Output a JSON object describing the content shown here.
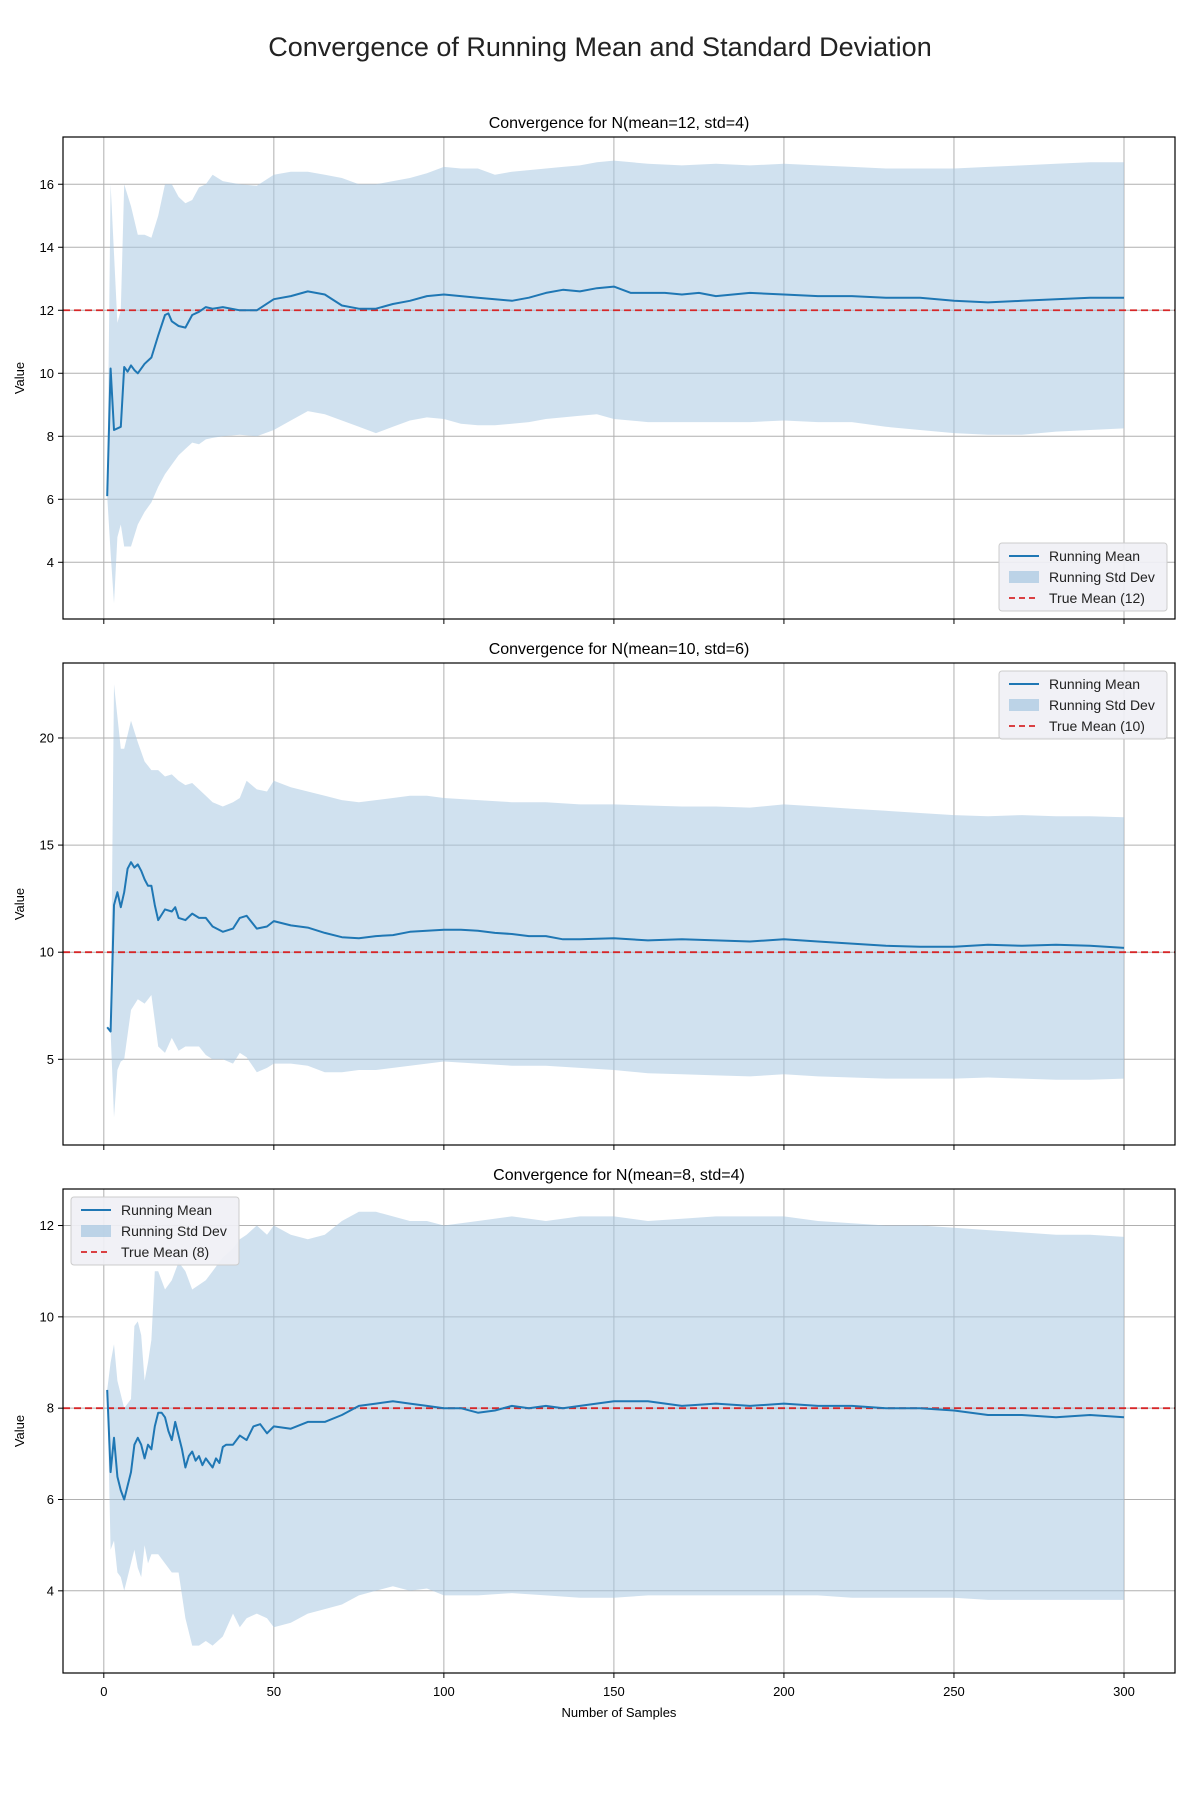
{
  "figure": {
    "suptitle": "Convergence of Running Mean and Standard Deviation"
  },
  "colors": {
    "mean_line": "#1f77b4",
    "std_band": "#a9c8e2",
    "true_mean": "#d62728",
    "grid": "#b0b0b0",
    "axes": "#000000"
  },
  "chart_data": [
    {
      "type": "line",
      "title": "Convergence for N(mean=12, std=4)",
      "xlabel": "",
      "ylabel": "Value",
      "xlim": [
        -12,
        315
      ],
      "ylim": [
        2.2,
        17.5
      ],
      "x_ticks": [
        0,
        50,
        100,
        150,
        200,
        250,
        300
      ],
      "x_tick_labels_visible": false,
      "y_ticks": [
        4,
        6,
        8,
        10,
        12,
        14,
        16
      ],
      "y_tick_labels": [
        "4",
        "6",
        "8",
        "10",
        "12",
        "14",
        "16"
      ],
      "grid": true,
      "legend": {
        "placement": "lower-right",
        "entries": [
          "Running Mean",
          "Running Std Dev",
          "True Mean (12)"
        ]
      },
      "true_mean": 12,
      "series": [
        {
          "name": "Running Mean",
          "x": [
            1,
            2,
            3,
            5,
            6,
            7,
            8,
            9,
            10,
            12,
            14,
            16,
            18,
            19,
            20,
            22,
            24,
            26,
            28,
            30,
            32,
            35,
            40,
            45,
            50,
            55,
            60,
            65,
            70,
            75,
            80,
            85,
            90,
            95,
            100,
            105,
            110,
            115,
            120,
            125,
            130,
            135,
            140,
            145,
            150,
            155,
            160,
            165,
            170,
            175,
            180,
            190,
            200,
            210,
            220,
            230,
            240,
            250,
            260,
            270,
            280,
            290,
            300
          ],
          "y": [
            6.1,
            10.15,
            8.2,
            8.3,
            10.2,
            10.05,
            10.25,
            10.1,
            10.0,
            10.3,
            10.5,
            11.2,
            11.85,
            11.9,
            11.65,
            11.5,
            11.45,
            11.85,
            11.95,
            12.1,
            12.05,
            12.1,
            12.0,
            12.0,
            12.35,
            12.45,
            12.6,
            12.5,
            12.15,
            12.05,
            12.05,
            12.2,
            12.3,
            12.45,
            12.5,
            12.45,
            12.4,
            12.35,
            12.3,
            12.4,
            12.55,
            12.65,
            12.6,
            12.7,
            12.75,
            12.55,
            12.55,
            12.55,
            12.5,
            12.55,
            12.45,
            12.55,
            12.5,
            12.45,
            12.45,
            12.4,
            12.4,
            12.3,
            12.25,
            12.3,
            12.35,
            12.4,
            12.4
          ]
        },
        {
          "name": "Running Std Dev",
          "x": [
            1,
            2,
            3,
            4,
            5,
            6,
            8,
            10,
            12,
            14,
            16,
            18,
            20,
            22,
            24,
            26,
            28,
            30,
            32,
            35,
            40,
            45,
            50,
            55,
            60,
            65,
            70,
            75,
            80,
            85,
            90,
            95,
            100,
            105,
            110,
            115,
            120,
            125,
            130,
            135,
            140,
            145,
            150,
            160,
            170,
            180,
            190,
            200,
            210,
            220,
            230,
            240,
            250,
            260,
            270,
            280,
            290,
            300
          ],
          "upper": [
            6.1,
            16.0,
            13.8,
            11.6,
            12.0,
            16.0,
            15.3,
            14.4,
            14.4,
            14.3,
            15.0,
            16.0,
            16.0,
            15.6,
            15.4,
            15.5,
            15.9,
            16.0,
            16.3,
            16.1,
            16.0,
            15.95,
            16.3,
            16.4,
            16.4,
            16.3,
            16.2,
            16.0,
            16.0,
            16.1,
            16.2,
            16.35,
            16.55,
            16.5,
            16.5,
            16.3,
            16.4,
            16.45,
            16.5,
            16.55,
            16.6,
            16.7,
            16.75,
            16.65,
            16.6,
            16.65,
            16.6,
            16.65,
            16.6,
            16.55,
            16.5,
            16.5,
            16.5,
            16.55,
            16.6,
            16.65,
            16.7,
            16.7
          ],
          "lower": [
            6.1,
            4.3,
            2.7,
            4.8,
            5.2,
            4.5,
            4.5,
            5.2,
            5.6,
            5.9,
            6.4,
            6.8,
            7.1,
            7.4,
            7.6,
            7.8,
            7.75,
            7.9,
            7.95,
            8.0,
            8.05,
            8.0,
            8.2,
            8.5,
            8.8,
            8.7,
            8.5,
            8.3,
            8.1,
            8.3,
            8.5,
            8.6,
            8.55,
            8.4,
            8.35,
            8.35,
            8.4,
            8.45,
            8.55,
            8.6,
            8.65,
            8.7,
            8.55,
            8.45,
            8.45,
            8.45,
            8.45,
            8.5,
            8.45,
            8.45,
            8.3,
            8.2,
            8.1,
            8.05,
            8.05,
            8.15,
            8.2,
            8.25
          ]
        }
      ]
    },
    {
      "type": "line",
      "title": "Convergence for N(mean=10, std=6)",
      "xlabel": "",
      "ylabel": "Value",
      "xlim": [
        -12,
        315
      ],
      "ylim": [
        1.0,
        23.5
      ],
      "x_ticks": [
        0,
        50,
        100,
        150,
        200,
        250,
        300
      ],
      "x_tick_labels_visible": false,
      "y_ticks": [
        5,
        10,
        15,
        20
      ],
      "y_tick_labels": [
        "5",
        "10",
        "15",
        "20"
      ],
      "grid": true,
      "legend": {
        "placement": "upper-right",
        "entries": [
          "Running Mean",
          "Running Std Dev",
          "True Mean (10)"
        ]
      },
      "true_mean": 10,
      "series": [
        {
          "name": "Running Mean",
          "x": [
            1,
            2,
            3,
            4,
            5,
            6,
            7,
            8,
            9,
            10,
            11,
            12,
            13,
            14,
            15,
            16,
            18,
            20,
            21,
            22,
            24,
            26,
            28,
            30,
            32,
            35,
            38,
            40,
            42,
            45,
            48,
            50,
            55,
            60,
            65,
            70,
            75,
            80,
            85,
            90,
            95,
            100,
            105,
            110,
            115,
            120,
            125,
            130,
            135,
            140,
            150,
            160,
            170,
            180,
            190,
            200,
            210,
            220,
            230,
            240,
            250,
            260,
            270,
            280,
            290,
            300
          ],
          "y": [
            6.5,
            6.3,
            12.2,
            12.8,
            12.1,
            12.8,
            13.9,
            14.2,
            13.95,
            14.1,
            13.8,
            13.4,
            13.1,
            13.1,
            12.2,
            11.5,
            12.0,
            11.9,
            12.1,
            11.6,
            11.5,
            11.8,
            11.6,
            11.6,
            11.2,
            10.95,
            11.1,
            11.6,
            11.7,
            11.1,
            11.2,
            11.45,
            11.25,
            11.15,
            10.9,
            10.7,
            10.65,
            10.75,
            10.8,
            10.95,
            11.0,
            11.05,
            11.05,
            11.0,
            10.9,
            10.85,
            10.75,
            10.75,
            10.6,
            10.6,
            10.65,
            10.55,
            10.6,
            10.55,
            10.5,
            10.6,
            10.5,
            10.4,
            10.3,
            10.25,
            10.25,
            10.35,
            10.3,
            10.35,
            10.3,
            10.2
          ]
        },
        {
          "name": "Running Std Dev",
          "x": [
            1,
            2,
            3,
            4,
            5,
            6,
            8,
            10,
            12,
            14,
            16,
            18,
            20,
            22,
            24,
            26,
            28,
            30,
            32,
            35,
            38,
            40,
            42,
            45,
            48,
            50,
            55,
            60,
            65,
            70,
            75,
            80,
            85,
            90,
            95,
            100,
            110,
            120,
            130,
            140,
            150,
            160,
            170,
            180,
            190,
            200,
            210,
            220,
            230,
            240,
            250,
            260,
            270,
            280,
            290,
            300
          ],
          "upper": [
            6.5,
            6.3,
            22.5,
            21.0,
            19.5,
            19.5,
            20.8,
            19.8,
            18.9,
            18.5,
            18.5,
            18.2,
            18.3,
            18.0,
            17.8,
            17.9,
            17.6,
            17.3,
            17.0,
            16.8,
            17.0,
            17.2,
            18.0,
            17.6,
            17.5,
            18.0,
            17.7,
            17.5,
            17.3,
            17.1,
            17.0,
            17.1,
            17.2,
            17.3,
            17.3,
            17.2,
            17.1,
            17.0,
            17.0,
            16.9,
            16.9,
            16.85,
            16.8,
            16.8,
            16.75,
            16.9,
            16.8,
            16.7,
            16.6,
            16.5,
            16.4,
            16.35,
            16.4,
            16.35,
            16.35,
            16.3
          ],
          "lower": [
            6.5,
            6.3,
            2.3,
            4.5,
            4.9,
            5.0,
            7.3,
            7.8,
            7.6,
            8.0,
            5.6,
            5.3,
            6.0,
            5.4,
            5.6,
            5.6,
            5.6,
            5.2,
            5.0,
            5.0,
            4.8,
            5.3,
            5.1,
            4.4,
            4.6,
            4.8,
            4.8,
            4.7,
            4.4,
            4.4,
            4.5,
            4.5,
            4.6,
            4.7,
            4.8,
            4.9,
            4.8,
            4.7,
            4.7,
            4.6,
            4.5,
            4.35,
            4.3,
            4.25,
            4.2,
            4.3,
            4.2,
            4.15,
            4.1,
            4.1,
            4.1,
            4.15,
            4.1,
            4.05,
            4.05,
            4.1
          ]
        }
      ]
    },
    {
      "type": "line",
      "title": "Convergence for N(mean=8, std=4)",
      "xlabel": "Number of Samples",
      "ylabel": "Value",
      "xlim": [
        -12,
        315
      ],
      "ylim": [
        2.2,
        12.8
      ],
      "x_ticks": [
        0,
        50,
        100,
        150,
        200,
        250,
        300
      ],
      "x_tick_labels": [
        "0",
        "50",
        "100",
        "150",
        "200",
        "250",
        "300"
      ],
      "x_tick_labels_visible": true,
      "y_ticks": [
        4,
        6,
        8,
        10,
        12
      ],
      "y_tick_labels": [
        "4",
        "6",
        "8",
        "10",
        "12"
      ],
      "grid": true,
      "legend": {
        "placement": "upper-left",
        "entries": [
          "Running Mean",
          "Running Std Dev",
          "True Mean (8)"
        ]
      },
      "true_mean": 8,
      "series": [
        {
          "name": "Running Mean",
          "x": [
            1,
            2,
            3,
            4,
            5,
            6,
            7,
            8,
            9,
            10,
            11,
            12,
            13,
            14,
            15,
            16,
            17,
            18,
            19,
            20,
            21,
            22,
            23,
            24,
            25,
            26,
            27,
            28,
            29,
            30,
            31,
            32,
            33,
            34,
            35,
            36,
            38,
            40,
            42,
            44,
            46,
            48,
            50,
            55,
            60,
            65,
            70,
            75,
            80,
            85,
            90,
            95,
            100,
            105,
            110,
            115,
            120,
            125,
            130,
            135,
            140,
            150,
            160,
            170,
            180,
            190,
            200,
            210,
            220,
            230,
            240,
            250,
            260,
            270,
            280,
            290,
            300
          ],
          "y": [
            8.4,
            6.6,
            7.35,
            6.5,
            6.2,
            6.0,
            6.3,
            6.6,
            7.2,
            7.35,
            7.2,
            6.9,
            7.2,
            7.1,
            7.6,
            7.9,
            7.9,
            7.8,
            7.5,
            7.3,
            7.7,
            7.4,
            7.1,
            6.7,
            6.95,
            7.05,
            6.85,
            6.95,
            6.75,
            6.9,
            6.8,
            6.7,
            6.9,
            6.8,
            7.15,
            7.2,
            7.2,
            7.4,
            7.3,
            7.6,
            7.65,
            7.45,
            7.6,
            7.55,
            7.7,
            7.7,
            7.85,
            8.05,
            8.1,
            8.15,
            8.1,
            8.05,
            8.0,
            8.0,
            7.9,
            7.95,
            8.05,
            8.0,
            8.05,
            8.0,
            8.05,
            8.15,
            8.15,
            8.05,
            8.1,
            8.05,
            8.1,
            8.05,
            8.05,
            8.0,
            8.0,
            7.95,
            7.85,
            7.85,
            7.8,
            7.85,
            7.8
          ]
        },
        {
          "name": "Running Std Dev",
          "x": [
            1,
            2,
            3,
            4,
            5,
            6,
            8,
            9,
            10,
            11,
            12,
            13,
            14,
            15,
            16,
            18,
            20,
            22,
            24,
            26,
            28,
            30,
            32,
            35,
            38,
            40,
            42,
            45,
            48,
            50,
            55,
            60,
            65,
            70,
            75,
            80,
            85,
            90,
            95,
            100,
            110,
            120,
            130,
            140,
            150,
            160,
            170,
            180,
            190,
            200,
            210,
            220,
            230,
            240,
            250,
            260,
            270,
            280,
            290,
            300
          ],
          "upper": [
            8.4,
            9.0,
            9.4,
            8.6,
            8.3,
            8.0,
            8.2,
            9.8,
            9.9,
            9.6,
            8.6,
            9.0,
            9.5,
            11.0,
            11.0,
            10.6,
            10.8,
            11.2,
            11.0,
            10.6,
            10.7,
            10.8,
            11.0,
            11.3,
            11.5,
            11.7,
            11.8,
            12.0,
            11.8,
            12.0,
            11.8,
            11.7,
            11.8,
            12.1,
            12.3,
            12.3,
            12.2,
            12.1,
            12.1,
            12.0,
            12.1,
            12.2,
            12.1,
            12.2,
            12.2,
            12.1,
            12.15,
            12.2,
            12.2,
            12.2,
            12.1,
            12.05,
            12.0,
            12.0,
            11.95,
            11.9,
            11.85,
            11.8,
            11.8,
            11.75
          ],
          "lower": [
            8.4,
            4.9,
            5.1,
            4.4,
            4.3,
            4.0,
            4.6,
            4.9,
            4.5,
            4.3,
            5.0,
            4.6,
            4.8,
            4.8,
            4.8,
            4.6,
            4.4,
            4.4,
            3.4,
            2.8,
            2.8,
            2.9,
            2.8,
            3.0,
            3.5,
            3.2,
            3.4,
            3.5,
            3.4,
            3.2,
            3.3,
            3.5,
            3.6,
            3.7,
            3.9,
            4.0,
            4.1,
            4.0,
            4.05,
            3.9,
            3.9,
            3.95,
            3.9,
            3.85,
            3.85,
            3.9,
            3.9,
            3.9,
            3.9,
            3.9,
            3.9,
            3.85,
            3.85,
            3.85,
            3.85,
            3.8,
            3.8,
            3.8,
            3.8,
            3.8
          ]
        }
      ]
    }
  ]
}
